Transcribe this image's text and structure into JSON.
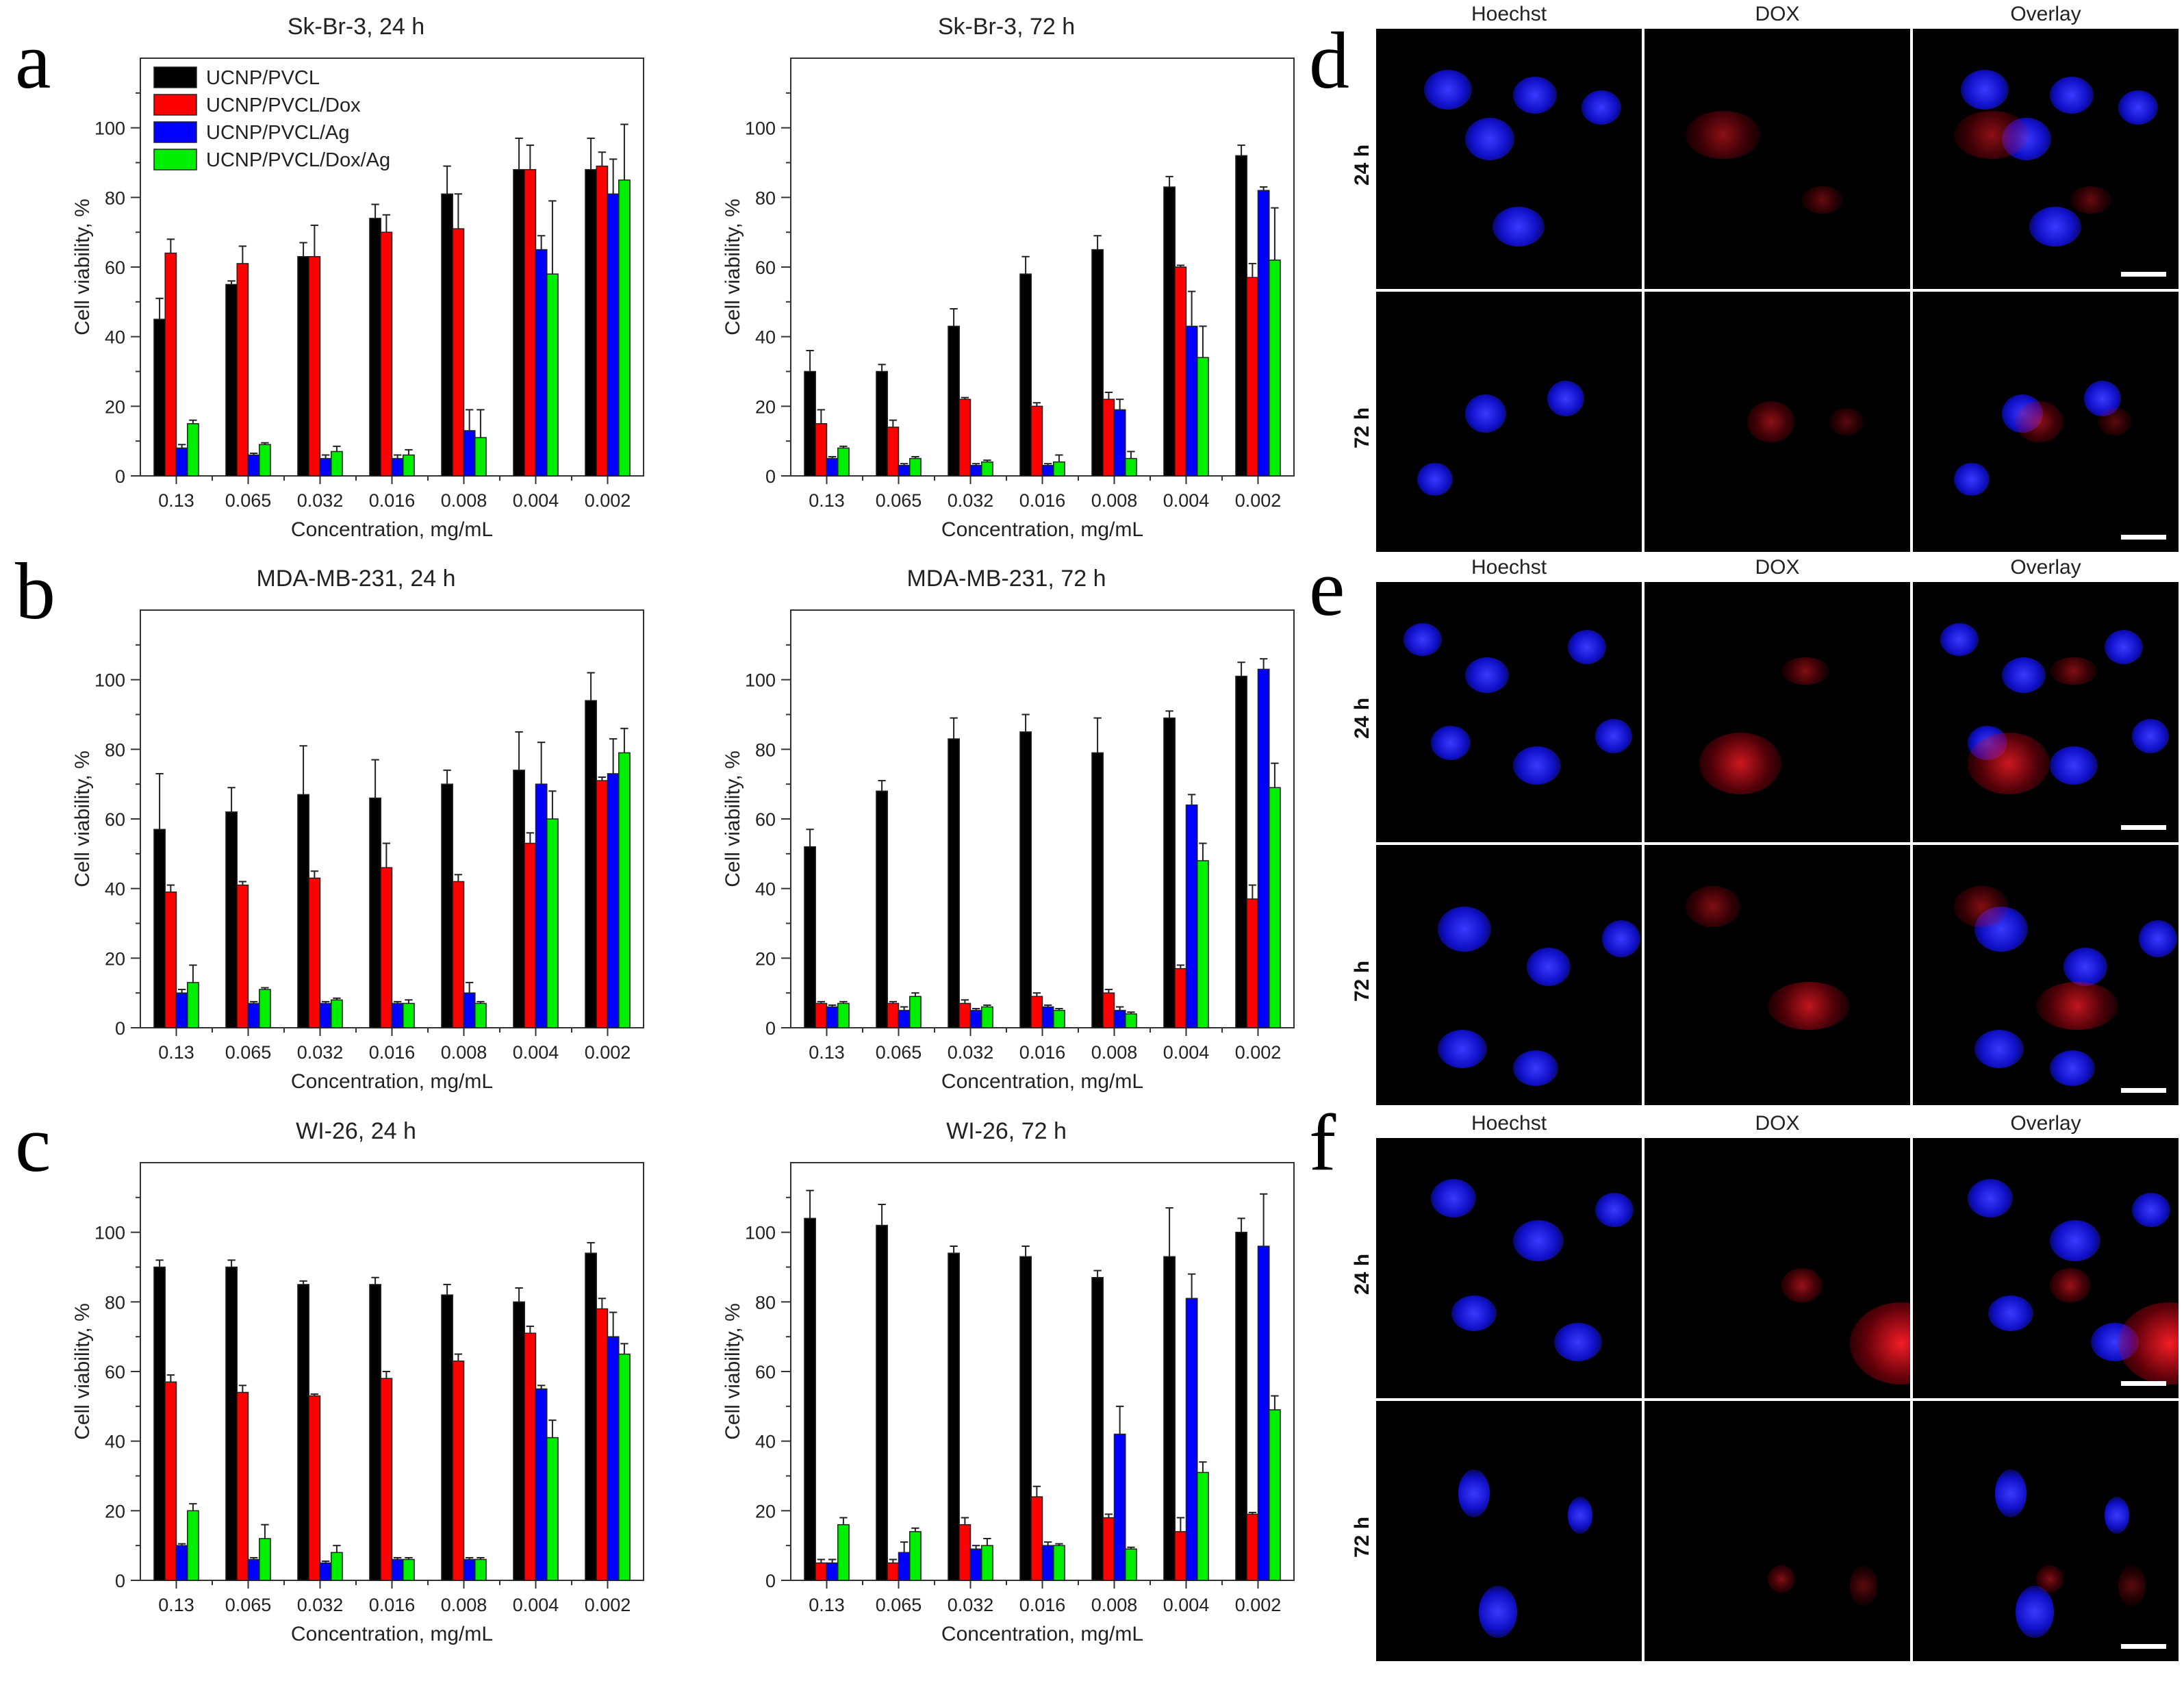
{
  "panel_labels": [
    "a",
    "b",
    "c",
    "d",
    "e",
    "f"
  ],
  "legend": [
    "UCNP/PVCL",
    "UCNP/PVCL/Dox",
    "UCNP/PVCL/Ag",
    "UCNP/PVCL/Dox/Ag"
  ],
  "colors": {
    "series": [
      "#000000",
      "#ff0000",
      "#0000ff",
      "#00ee00"
    ]
  },
  "chart_data": [
    {
      "type": "bar",
      "title": "Sk-Br-3, 24 h",
      "xlabel": "Concentration, mg/mL",
      "ylabel": "Cell viability, %",
      "ylim": [
        0,
        120
      ],
      "yticks": [
        0,
        20,
        40,
        60,
        80,
        100
      ],
      "categories": [
        "0.13",
        "0.065",
        "0.032",
        "0.016",
        "0.008",
        "0.004",
        "0.002"
      ],
      "series": [
        {
          "name": "UCNP/PVCL",
          "values": [
            45,
            55,
            63,
            74,
            81,
            88,
            88
          ],
          "errors": [
            6,
            1,
            4,
            4,
            8,
            9,
            9
          ]
        },
        {
          "name": "UCNP/PVCL/Dox",
          "values": [
            64,
            61,
            63,
            70,
            71,
            88,
            89
          ],
          "errors": [
            4,
            5,
            9,
            5,
            10,
            7,
            4
          ]
        },
        {
          "name": "UCNP/PVCL/Ag",
          "values": [
            8,
            6,
            5,
            5,
            13,
            65,
            81
          ],
          "errors": [
            1,
            0.5,
            1,
            1,
            6,
            4,
            10
          ]
        },
        {
          "name": "UCNP/PVCL/Dox/Ag",
          "values": [
            15,
            9,
            7,
            6,
            11,
            58,
            85
          ],
          "errors": [
            1,
            0.5,
            1.5,
            1.5,
            8,
            21,
            16
          ]
        }
      ],
      "legend_position": "top-left"
    },
    {
      "type": "bar",
      "title": "Sk-Br-3, 72 h",
      "xlabel": "Concentration, mg/mL",
      "ylabel": "Cell viability, %",
      "ylim": [
        0,
        120
      ],
      "yticks": [
        0,
        20,
        40,
        60,
        80,
        100
      ],
      "categories": [
        "0.13",
        "0.065",
        "0.032",
        "0.016",
        "0.008",
        "0.004",
        "0.002"
      ],
      "series": [
        {
          "name": "UCNP/PVCL",
          "values": [
            30,
            30,
            43,
            58,
            65,
            83,
            92
          ],
          "errors": [
            6,
            2,
            5,
            5,
            4,
            3,
            3
          ]
        },
        {
          "name": "UCNP/PVCL/Dox",
          "values": [
            15,
            14,
            22,
            20,
            22,
            60,
            57
          ],
          "errors": [
            4,
            2,
            0.5,
            1,
            2,
            0.5,
            4
          ]
        },
        {
          "name": "UCNP/PVCL/Ag",
          "values": [
            5,
            3,
            3,
            3,
            19,
            43,
            82
          ],
          "errors": [
            0.5,
            0.5,
            0.5,
            0.5,
            3,
            10,
            1
          ]
        },
        {
          "name": "UCNP/PVCL/Dox/Ag",
          "values": [
            8,
            5,
            4,
            4,
            5,
            34,
            62
          ],
          "errors": [
            0.5,
            0.5,
            0.5,
            2,
            2,
            9,
            15
          ]
        }
      ]
    },
    {
      "type": "bar",
      "title": "MDA-MB-231, 24 h",
      "xlabel": "Concentration, mg/mL",
      "ylabel": "Cell viability, %",
      "ylim": [
        0,
        120
      ],
      "yticks": [
        0,
        20,
        40,
        60,
        80,
        100
      ],
      "categories": [
        "0.13",
        "0.065",
        "0.032",
        "0.016",
        "0.008",
        "0.004",
        "0.002"
      ],
      "series": [
        {
          "name": "UCNP/PVCL",
          "values": [
            57,
            62,
            67,
            66,
            70,
            74,
            94
          ],
          "errors": [
            16,
            7,
            14,
            11,
            4,
            11,
            8
          ]
        },
        {
          "name": "UCNP/PVCL/Dox",
          "values": [
            39,
            41,
            43,
            46,
            42,
            53,
            71
          ],
          "errors": [
            2,
            1,
            2,
            7,
            2,
            3,
            1
          ]
        },
        {
          "name": "UCNP/PVCL/Ag",
          "values": [
            10,
            7,
            7,
            7,
            10,
            70,
            73
          ],
          "errors": [
            1,
            0.5,
            0.5,
            0.5,
            3,
            12,
            10
          ]
        },
        {
          "name": "UCNP/PVCL/Dox/Ag",
          "values": [
            13,
            11,
            8,
            7,
            7,
            60,
            79
          ],
          "errors": [
            5,
            0.5,
            0.5,
            1,
            0.5,
            8,
            7
          ]
        }
      ]
    },
    {
      "type": "bar",
      "title": "MDA-MB-231, 72 h",
      "xlabel": "Concentration, mg/mL",
      "ylabel": "Cell viability, %",
      "ylim": [
        0,
        120
      ],
      "yticks": [
        0,
        20,
        40,
        60,
        80,
        100
      ],
      "categories": [
        "0.13",
        "0.065",
        "0.032",
        "0.016",
        "0.008",
        "0.004",
        "0.002"
      ],
      "series": [
        {
          "name": "UCNP/PVCL",
          "values": [
            52,
            68,
            83,
            85,
            79,
            89,
            101
          ],
          "errors": [
            5,
            3,
            6,
            5,
            10,
            2,
            4
          ]
        },
        {
          "name": "UCNP/PVCL/Dox",
          "values": [
            7,
            7,
            7,
            9,
            10,
            17,
            37
          ],
          "errors": [
            0.5,
            0.5,
            1,
            1,
            1,
            1,
            4
          ]
        },
        {
          "name": "UCNP/PVCL/Ag",
          "values": [
            6,
            5,
            5,
            6,
            5,
            64,
            103
          ],
          "errors": [
            0.5,
            1,
            0.5,
            0.5,
            1,
            3,
            3
          ]
        },
        {
          "name": "UCNP/PVCL/Dox/Ag",
          "values": [
            7,
            9,
            6,
            5,
            4,
            48,
            69
          ],
          "errors": [
            0.5,
            1,
            0.5,
            0.5,
            0.5,
            5,
            7
          ]
        }
      ]
    },
    {
      "type": "bar",
      "title": "WI-26, 24 h",
      "xlabel": "Concentration, mg/mL",
      "ylabel": "Cell viability, %",
      "ylim": [
        0,
        120
      ],
      "yticks": [
        0,
        20,
        40,
        60,
        80,
        100
      ],
      "categories": [
        "0.13",
        "0.065",
        "0.032",
        "0.016",
        "0.008",
        "0.004",
        "0.002"
      ],
      "series": [
        {
          "name": "UCNP/PVCL",
          "values": [
            90,
            90,
            85,
            85,
            82,
            80,
            94
          ],
          "errors": [
            2,
            2,
            1,
            2,
            3,
            4,
            3
          ]
        },
        {
          "name": "UCNP/PVCL/Dox",
          "values": [
            57,
            54,
            53,
            58,
            63,
            71,
            78
          ],
          "errors": [
            2,
            2,
            0.5,
            2,
            2,
            2,
            3
          ]
        },
        {
          "name": "UCNP/PVCL/Ag",
          "values": [
            10,
            6,
            5,
            6,
            6,
            55,
            70
          ],
          "errors": [
            0.5,
            0.5,
            0.5,
            0.5,
            0.5,
            1,
            7
          ]
        },
        {
          "name": "UCNP/PVCL/Dox/Ag",
          "values": [
            20,
            12,
            8,
            6,
            6,
            41,
            65
          ],
          "errors": [
            2,
            4,
            2,
            0.5,
            0.5,
            5,
            3
          ]
        }
      ]
    },
    {
      "type": "bar",
      "title": "WI-26, 72 h",
      "xlabel": "Concentration, mg/mL",
      "ylabel": "Cell viability, %",
      "ylim": [
        0,
        120
      ],
      "yticks": [
        0,
        20,
        40,
        60,
        80,
        100
      ],
      "categories": [
        "0.13",
        "0.065",
        "0.032",
        "0.016",
        "0.008",
        "0.004",
        "0.002"
      ],
      "series": [
        {
          "name": "UCNP/PVCL",
          "values": [
            104,
            102,
            94,
            93,
            87,
            93,
            100
          ],
          "errors": [
            8,
            6,
            2,
            3,
            2,
            14,
            4
          ]
        },
        {
          "name": "UCNP/PVCL/Dox",
          "values": [
            5,
            5,
            16,
            24,
            18,
            14,
            19
          ],
          "errors": [
            1,
            1,
            2,
            3,
            1,
            4,
            0.5
          ]
        },
        {
          "name": "UCNP/PVCL/Ag",
          "values": [
            5,
            8,
            9,
            10,
            42,
            81,
            96
          ],
          "errors": [
            1,
            3,
            1,
            1,
            8,
            7,
            15
          ]
        },
        {
          "name": "UCNP/PVCL/Dox/Ag",
          "values": [
            16,
            14,
            10,
            10,
            9,
            31,
            49
          ],
          "errors": [
            2,
            1,
            2,
            0.5,
            0.5,
            3,
            4
          ]
        }
      ]
    }
  ],
  "microscopy": {
    "column_headers": [
      "Hoechst",
      "DOX",
      "Overlay"
    ],
    "row_labels": [
      "24 h",
      "72 h"
    ],
    "panels": [
      "d",
      "e",
      "f"
    ]
  }
}
